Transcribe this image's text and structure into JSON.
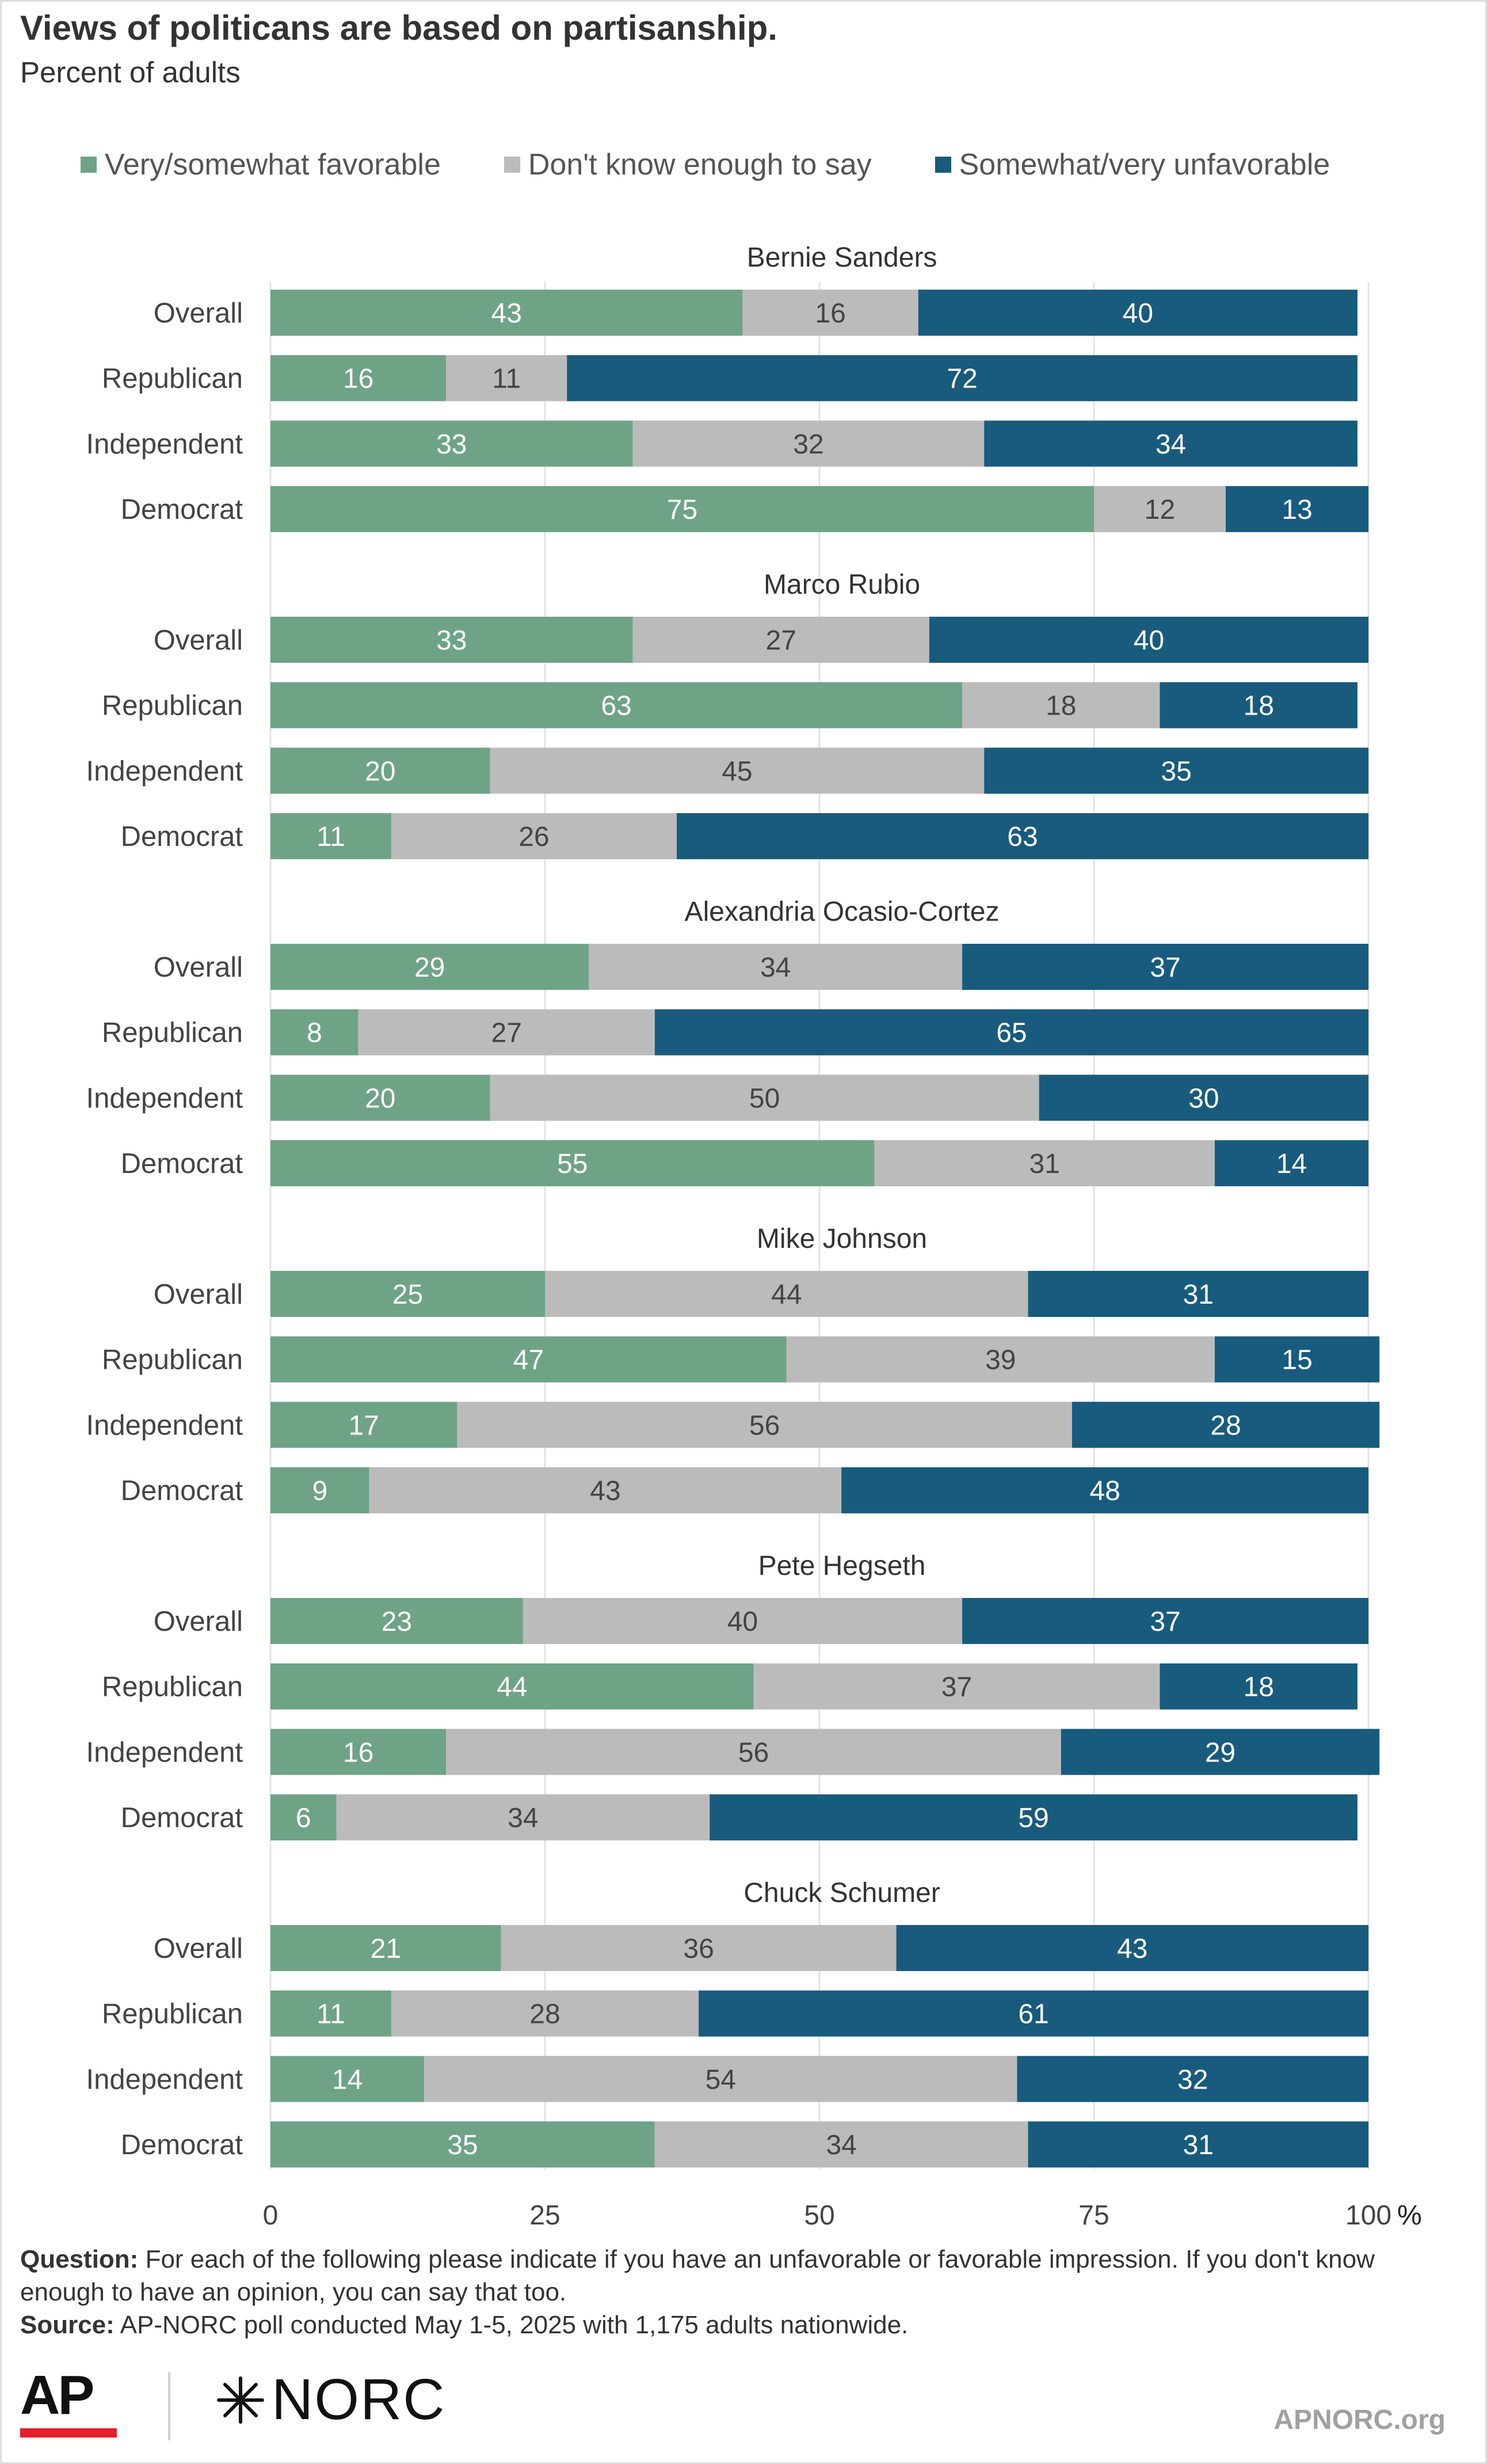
{
  "title": "Views of politicans are based on partisanship.",
  "subtitle": "Percent of adults",
  "legend": [
    {
      "label": "Very/somewhat favorable",
      "color": "#6fa386"
    },
    {
      "label": "Don't know enough to say",
      "color": "#bbbbbb"
    },
    {
      "label": "Somewhat/very unfavorable",
      "color": "#185b7d"
    }
  ],
  "chart_data": {
    "type": "bar",
    "orientation": "horizontal",
    "stacked": true,
    "xlim": [
      0,
      100
    ],
    "x_ticks": [
      "0",
      "25",
      "50",
      "75",
      "100"
    ],
    "x_unit": "%",
    "grid": true,
    "series_names": [
      "Very/somewhat favorable",
      "Don't know enough to say",
      "Somewhat/very unfavorable"
    ],
    "groups": [
      {
        "name": "Bernie Sanders",
        "rows": [
          {
            "label": "Overall",
            "values": [
              43,
              16,
              40
            ]
          },
          {
            "label": "Republican",
            "values": [
              16,
              11,
              72
            ]
          },
          {
            "label": "Independent",
            "values": [
              33,
              32,
              34
            ]
          },
          {
            "label": "Democrat",
            "values": [
              75,
              12,
              13
            ]
          }
        ]
      },
      {
        "name": "Marco Rubio",
        "rows": [
          {
            "label": "Overall",
            "values": [
              33,
              27,
              40
            ]
          },
          {
            "label": "Republican",
            "values": [
              63,
              18,
              18
            ]
          },
          {
            "label": "Independent",
            "values": [
              20,
              45,
              35
            ]
          },
          {
            "label": "Democrat",
            "values": [
              11,
              26,
              63
            ]
          }
        ]
      },
      {
        "name": "Alexandria Ocasio-Cortez",
        "rows": [
          {
            "label": "Overall",
            "values": [
              29,
              34,
              37
            ]
          },
          {
            "label": "Republican",
            "values": [
              8,
              27,
              65
            ]
          },
          {
            "label": "Independent",
            "values": [
              20,
              50,
              30
            ]
          },
          {
            "label": "Democrat",
            "values": [
              55,
              31,
              14
            ]
          }
        ]
      },
      {
        "name": "Mike Johnson",
        "rows": [
          {
            "label": "Overall",
            "values": [
              25,
              44,
              31
            ]
          },
          {
            "label": "Republican",
            "values": [
              47,
              39,
              15
            ]
          },
          {
            "label": "Independent",
            "values": [
              17,
              56,
              28
            ]
          },
          {
            "label": "Democrat",
            "values": [
              9,
              43,
              48
            ]
          }
        ]
      },
      {
        "name": "Pete Hegseth",
        "rows": [
          {
            "label": "Overall",
            "values": [
              23,
              40,
              37
            ]
          },
          {
            "label": "Republican",
            "values": [
              44,
              37,
              18
            ]
          },
          {
            "label": "Independent",
            "values": [
              16,
              56,
              29
            ]
          },
          {
            "label": "Democrat",
            "values": [
              6,
              34,
              59
            ]
          }
        ]
      },
      {
        "name": "Chuck Schumer",
        "rows": [
          {
            "label": "Overall",
            "values": [
              21,
              36,
              43
            ]
          },
          {
            "label": "Republican",
            "values": [
              11,
              28,
              61
            ]
          },
          {
            "label": "Independent",
            "values": [
              14,
              54,
              32
            ]
          },
          {
            "label": "Democrat",
            "values": [
              35,
              34,
              31
            ]
          }
        ]
      }
    ]
  },
  "notes": {
    "question_label": "Question:",
    "question_text": "For each of the following please indicate if you have an unfavorable or favorable impression. If you don't know enough to have an opinion, you can say that too.",
    "source_label": "Source:",
    "source_text": "AP-NORC poll conducted May 1-5, 2025 with 1,175 adults nationwide."
  },
  "footer": {
    "logo_ap": "AP",
    "logo_norc": "NORC",
    "site": "APNORC.org"
  }
}
